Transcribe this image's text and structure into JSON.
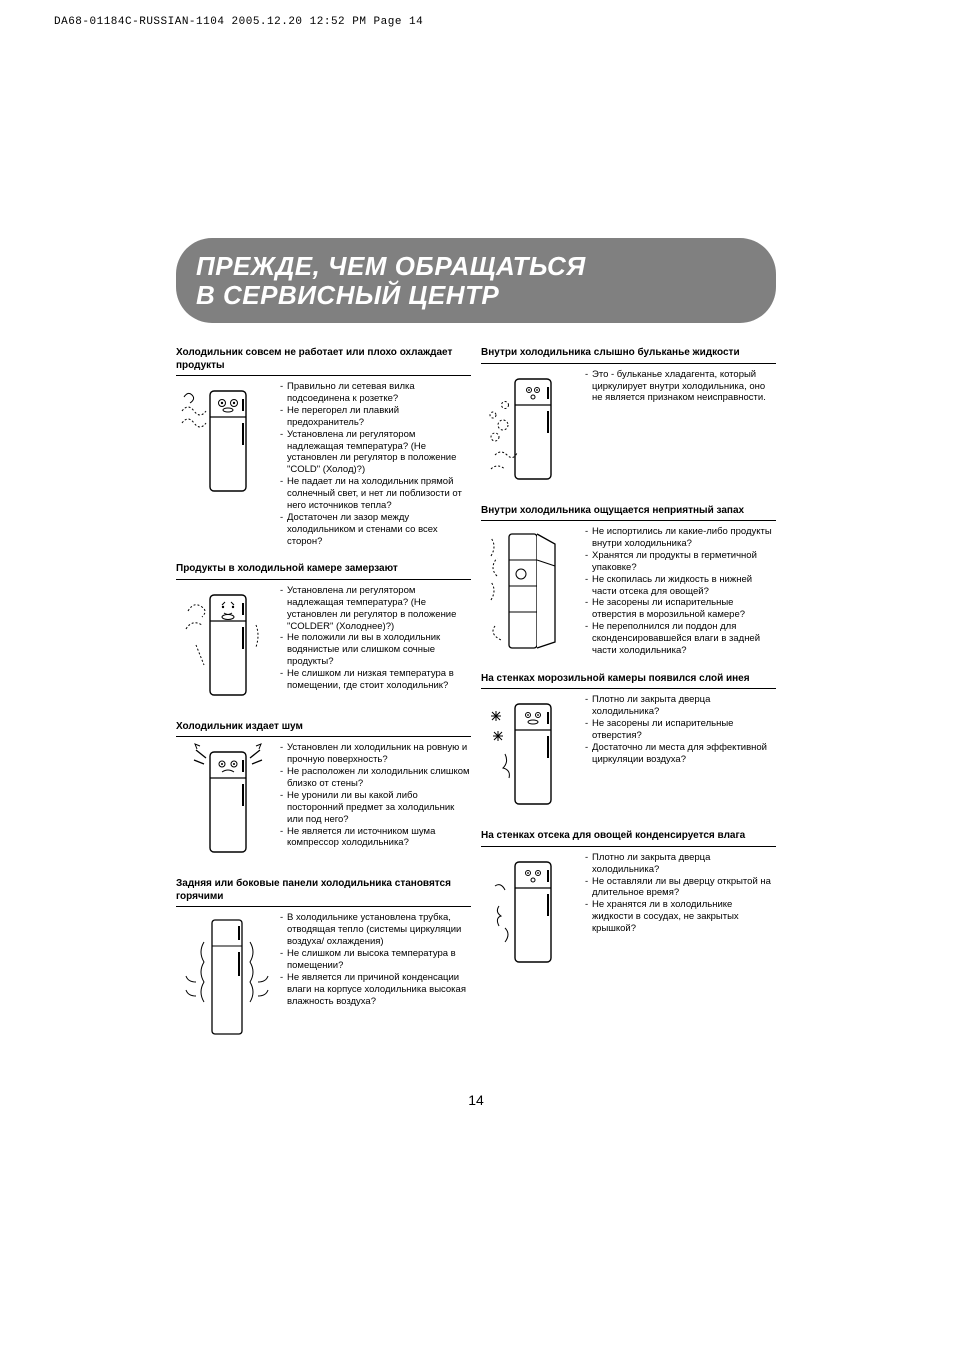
{
  "print_header": "DA68-01184C-RUSSIAN-1104  2005.12.20  12:52 PM  Page 14",
  "title": {
    "line1": "ПРЕЖДЕ, ЧЕМ ОБРАЩАТЬСЯ",
    "line2": "В СЕРВИСНЫЙ ЦЕНТР"
  },
  "page_number": "14",
  "left_sections": [
    {
      "heading": "Холодильник совсем не работает или плохо охлаждает продукты",
      "illus": "fridge-eyes-wavy",
      "items": [
        "Правильно ли сетевая вилка подсоединена к розетке?",
        "Не перегорел ли плавкий предохранитель?",
        "Установлена ли регулятором надлежащая температура? (Не установлен ли регулятор в положение \"COLD\" (Холод)?)",
        "Не падает ли на холодильник прямой солнечный свет, и нет ли поблизости от него источников тепла?",
        "Достаточен ли зазор между холодильником и стенами со всех сторон?"
      ]
    },
    {
      "heading": "Продукты в холодильной камере замерзают",
      "illus": "fridge-cold",
      "items": [
        "Установлена ли регулятором надлежащая температура? (Не установлен ли регулятор в положение \"COLDER\" (Холоднее)?)",
        "Не положили ли вы в холодильник водянистые или слишком сочные продукты?",
        "Не слишком ли низкая температура в помещении, где стоит холодильник?"
      ]
    },
    {
      "heading": "Холодильник издает шум",
      "illus": "fridge-noise",
      "items": [
        "Установлен ли холодильник на ровную и прочную поверхность?",
        "Не расположен ли холодильник слишком близко от стены?",
        "Не уронили ли вы какой либо посторонний предмет за холодильник или под него?",
        "Не является ли источником шума компрессор холодильника?"
      ]
    },
    {
      "heading": "Задняя или боковые панели холодильника становятся горячими",
      "illus": "fridge-hot-sides",
      "items": [
        "В холодильнике установлена трубка, отводящая тепло (системы циркуляции воздуха/ охлаждения)",
        "Не слишком ли высока температура в помещении?",
        "Не является ли причиной конденсации влаги на корпусе холодильника высокая влажность воздуха?"
      ]
    }
  ],
  "right_sections": [
    {
      "heading": "Внутри холодильника слышно бульканье жидкости",
      "illus": "fridge-bubbles",
      "items": [
        "Это - бульканье хладагента, который циркулирует внутри холодильника, оно не является признаком неисправности."
      ]
    },
    {
      "heading": "Внутри холодильника ощущается неприятный запах",
      "illus": "fridge-open-smell",
      "items": [
        "Не испортились ли какие-либо продукты внутри холодильника?",
        "Хранятся ли продукты в герметичной упаковке?",
        "Не скопилась ли жидкость в нижней части отсека для овощей?",
        "Не засорены ли испарительные отверстия в морозильной камере?",
        "Не переполнился ли поддон для сконденсировавшейся влаги в задней части холодильника?"
      ]
    },
    {
      "heading": "На стенках морозильной камеры появился слой инея",
      "illus": "fridge-frost",
      "items": [
        "Плотно ли закрыта дверца холодильника?",
        "Не засорены ли испарительные отверстия?",
        "Достаточно ли места для эффективной циркуляции воздуха?"
      ]
    },
    {
      "heading": "На стенках отсека для овощей конденсируется влага",
      "illus": "fridge-condense",
      "items": [
        "Плотно ли закрыта дверца холодильника?",
        "Не оставляли ли вы дверцу открытой на длительное время?",
        "Не хранятся ли в холодильнике жидкости в сосудах, не закрытых крышкой?"
      ]
    }
  ],
  "colors": {
    "banner_bg": "#808080",
    "banner_text": "#ffffff",
    "text": "#000000",
    "rule": "#000000"
  }
}
